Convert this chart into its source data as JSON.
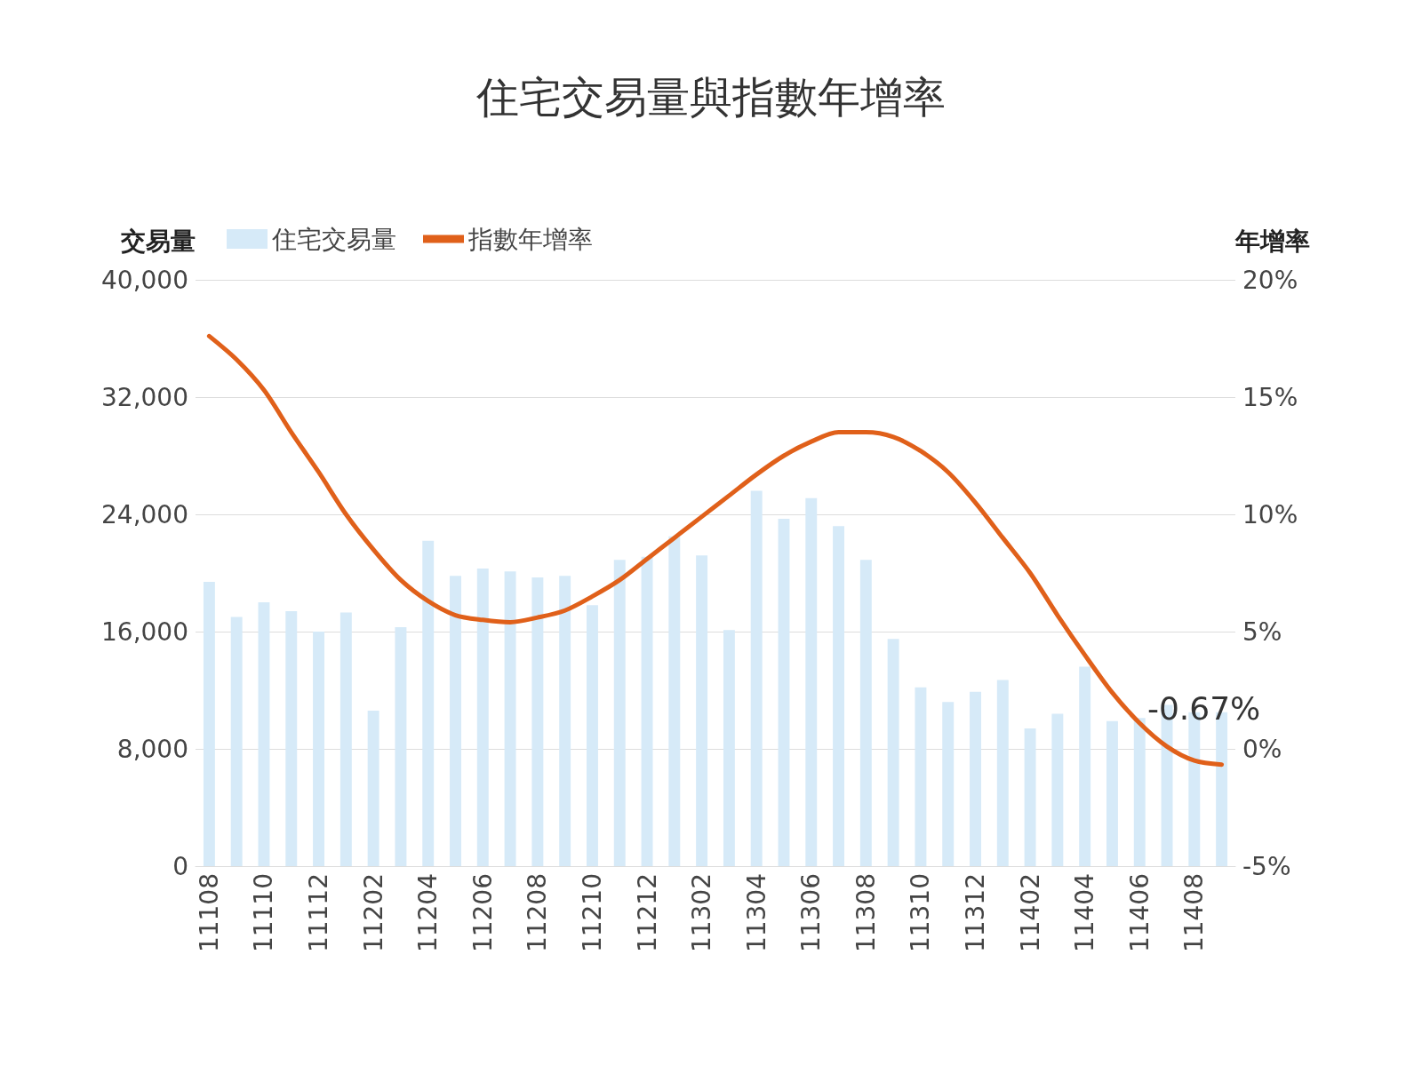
{
  "chart_data": {
    "type": "bar",
    "title": "住宅交易量與指數年增率",
    "ylabel": "交易量",
    "y2label": "年增率",
    "categories": [
      "11108",
      null,
      "11110",
      null,
      "11112",
      null,
      "11202",
      null,
      "11204",
      null,
      "11206",
      null,
      "11208",
      null,
      "11210",
      null,
      "11212",
      null,
      "11302",
      null,
      "11304",
      null,
      "11306",
      null,
      "11308",
      null,
      "11310",
      null,
      "11312",
      null,
      "11402",
      null,
      "11404",
      null,
      "11406",
      null,
      "11408",
      null
    ],
    "series": [
      {
        "name": "住宅交易量",
        "color": "#d6eaf8",
        "values": [
          19400,
          17000,
          18000,
          17400,
          16000,
          17300,
          10600,
          16300,
          22200,
          19800,
          20300,
          20100,
          19700,
          19800,
          17800,
          20900,
          21100,
          22500,
          21200,
          16100,
          25600,
          23700,
          25100,
          23200,
          20900,
          15500,
          12200,
          11200,
          11900,
          12700,
          9400,
          10400,
          13600,
          9900,
          10100,
          11000,
          10500,
          10500
        ]
      },
      {
        "name": "指數年增率",
        "type": "line",
        "axis": "y2",
        "color": "#e0601a",
        "marker": "none",
        "line_style": "solid",
        "values": [
          17.6,
          16.6,
          15.3,
          13.5,
          11.8,
          10.0,
          8.5,
          7.2,
          6.3,
          5.7,
          5.5,
          5.4,
          5.6,
          5.9,
          6.5,
          7.2,
          8.1,
          9.0,
          9.9,
          10.8,
          11.7,
          12.5,
          13.1,
          13.5,
          13.5,
          13.3,
          12.7,
          11.8,
          10.5,
          9.0,
          7.5,
          5.7,
          4.0,
          2.4,
          1.1,
          0.1,
          -0.5,
          -0.67
        ],
        "value_labels": [
          null,
          null,
          null,
          null,
          null,
          null,
          null,
          null,
          null,
          null,
          null,
          null,
          null,
          null,
          null,
          null,
          null,
          null,
          null,
          null,
          null,
          null,
          null,
          null,
          null,
          null,
          null,
          null,
          null,
          null,
          null,
          null,
          null,
          null,
          null,
          null,
          null,
          "-0.67%"
        ]
      }
    ],
    "ylim": [
      0,
      40000
    ],
    "yticks": [
      {
        "value": 0,
        "label": "0"
      },
      {
        "value": 8000,
        "label": "8,000"
      },
      {
        "value": 16000,
        "label": "16,000"
      },
      {
        "value": 24000,
        "label": "24,000"
      },
      {
        "value": 32000,
        "label": "32,000"
      },
      {
        "value": 40000,
        "label": "40,000"
      }
    ],
    "y2lim": [
      -5,
      20
    ],
    "y2ticks": [
      {
        "value": -5,
        "label": "-5%"
      },
      {
        "value": 0,
        "label": "0%"
      },
      {
        "value": 5,
        "label": "5%"
      },
      {
        "value": 10,
        "label": "10%"
      },
      {
        "value": 15,
        "label": "15%"
      },
      {
        "value": 20,
        "label": "20%"
      }
    ],
    "grid": "y",
    "legend": "top left"
  }
}
